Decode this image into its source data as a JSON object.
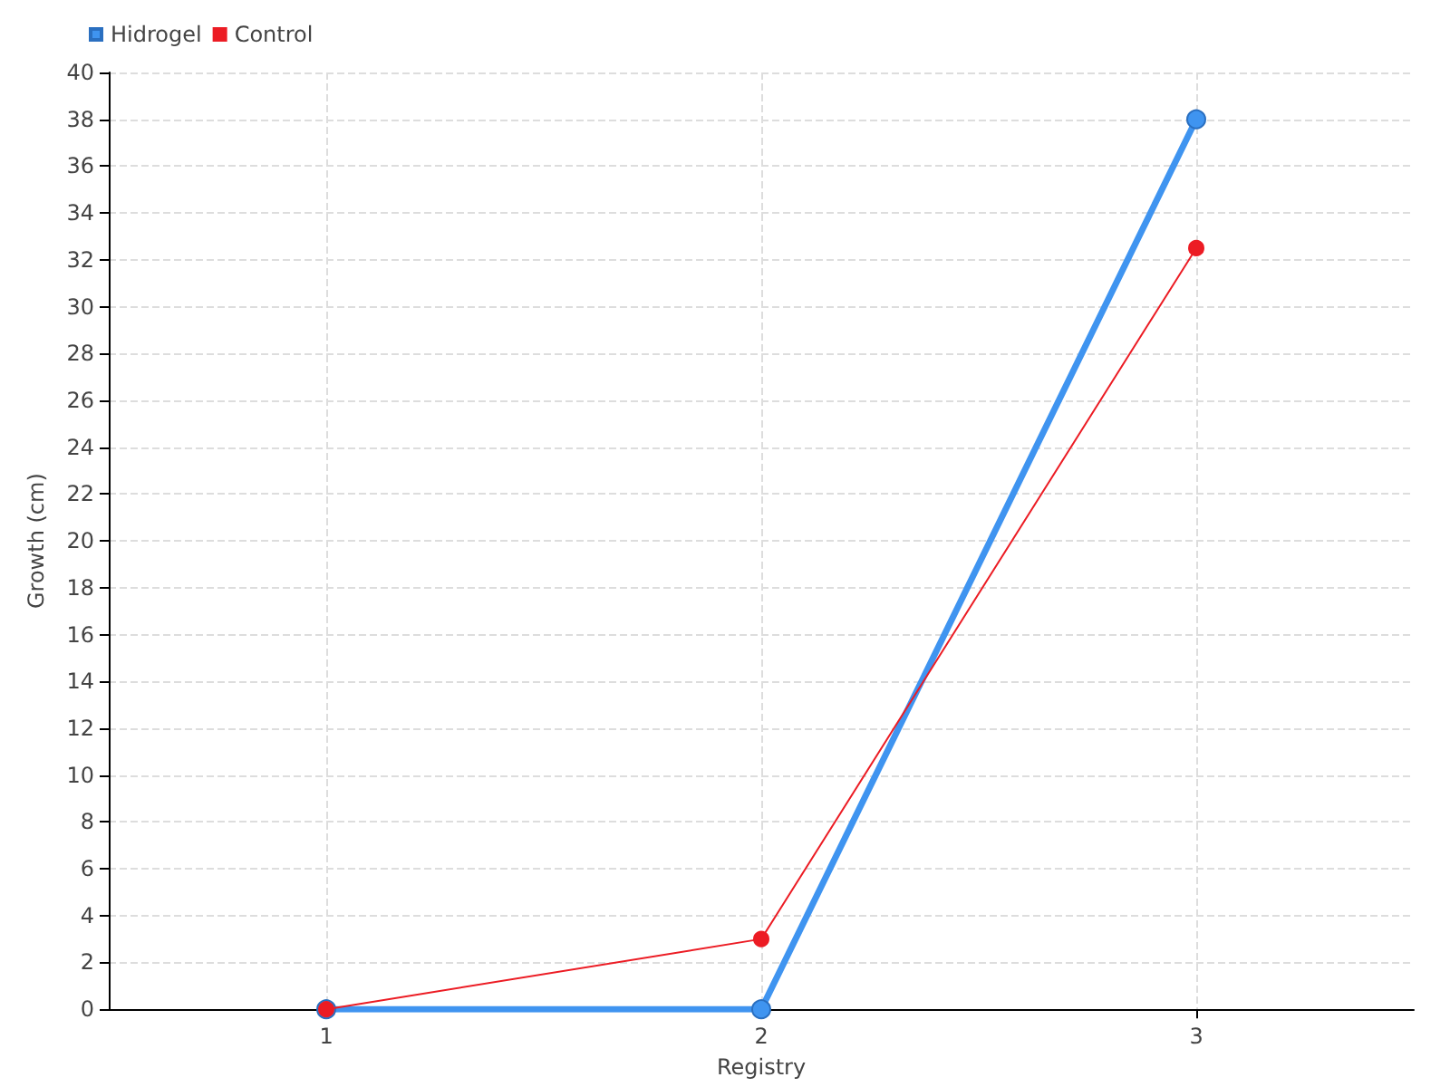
{
  "chart_data": {
    "type": "line",
    "xlabel": "Registry",
    "ylabel": "Growth (cm)",
    "categories": [
      "1",
      "2",
      "3"
    ],
    "series": [
      {
        "name": "Hidrogel",
        "color": "#3f94f0",
        "values": [
          0,
          0,
          38
        ]
      },
      {
        "name": "Control",
        "color": "#ec1c24",
        "values": [
          0,
          3,
          32.5
        ]
      }
    ],
    "ylim": [
      0,
      40
    ],
    "yticks": [
      0,
      2,
      4,
      6,
      8,
      10,
      12,
      14,
      16,
      18,
      20,
      22,
      24,
      26,
      28,
      30,
      32,
      34,
      36,
      38,
      40
    ],
    "grid": true,
    "legend": "top left",
    "marker": "circle",
    "line_style": "solid"
  }
}
